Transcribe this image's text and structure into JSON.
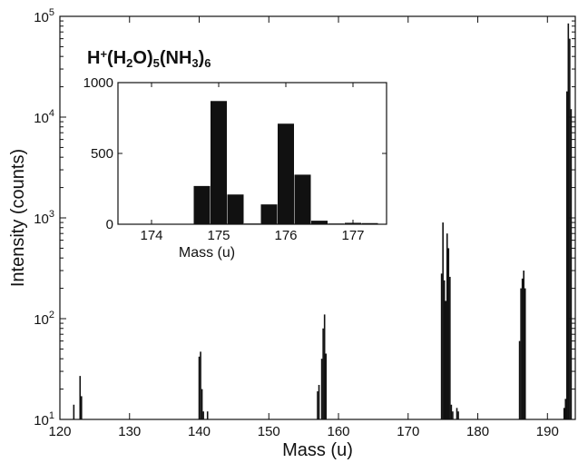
{
  "chart_data": [
    {
      "type": "bar",
      "title": "",
      "xlabel": "Mass (u)",
      "ylabel": "Intensity (counts)",
      "xlim": [
        120,
        194
      ],
      "ylim": [
        10,
        100000
      ],
      "yscale": "log",
      "x_ticks": [
        120,
        130,
        140,
        150,
        160,
        170,
        180,
        190
      ],
      "y_ticks": [
        {
          "value": 10,
          "base": "10",
          "exp": "1"
        },
        {
          "value": 100,
          "base": "10",
          "exp": "2"
        },
        {
          "value": 1000,
          "base": "10",
          "exp": "3"
        },
        {
          "value": 10000,
          "base": "10",
          "exp": "4"
        },
        {
          "value": 100000,
          "base": "10",
          "exp": "5"
        }
      ],
      "annotation": {
        "parts": [
          {
            "text": "H",
            "shift": "none"
          },
          {
            "text": "+",
            "shift": "super"
          },
          {
            "text": "(H",
            "shift": "none"
          },
          {
            "text": "2",
            "shift": "sub"
          },
          {
            "text": "O)",
            "shift": "none"
          },
          {
            "text": "5",
            "shift": "sub"
          },
          {
            "text": "(NH",
            "shift": "none"
          },
          {
            "text": "3",
            "shift": "sub"
          },
          {
            "text": ")",
            "shift": "none"
          },
          {
            "text": "6",
            "shift": "sub"
          }
        ]
      },
      "x": [
        122.0,
        122.9,
        123.1,
        140.0,
        140.2,
        140.4,
        140.6,
        141.2,
        157.0,
        157.2,
        157.6,
        157.8,
        158.0,
        158.2,
        174.8,
        175.0,
        175.2,
        175.4,
        175.6,
        175.8,
        176.0,
        176.2,
        176.4,
        177.0,
        177.2,
        186.0,
        186.2,
        186.4,
        186.6,
        186.8,
        192.4,
        192.6,
        192.8,
        193.0,
        193.2,
        193.4
      ],
      "values": [
        14,
        27,
        17,
        42,
        47,
        20,
        12,
        12,
        19,
        22,
        40,
        80,
        110,
        45,
        280,
        900,
        240,
        150,
        700,
        500,
        260,
        14,
        12,
        13,
        12,
        60,
        200,
        250,
        300,
        200,
        13,
        16,
        18000,
        85000,
        60000,
        12000
      ]
    },
    {
      "type": "bar",
      "title": "",
      "xlabel": "Mass (u)",
      "ylabel": "",
      "xlim": [
        173.5,
        177.5
      ],
      "ylim": [
        0,
        1000
      ],
      "x_ticks": [
        174,
        175,
        176,
        177
      ],
      "y_ticks": [
        0,
        500,
        1000
      ],
      "x": [
        174.75,
        175.0,
        175.25,
        175.5,
        175.75,
        176.0,
        176.25,
        176.5,
        176.75,
        177.0,
        177.25
      ],
      "values": [
        270,
        870,
        210,
        5,
        140,
        710,
        350,
        25,
        5,
        10,
        8
      ]
    }
  ]
}
